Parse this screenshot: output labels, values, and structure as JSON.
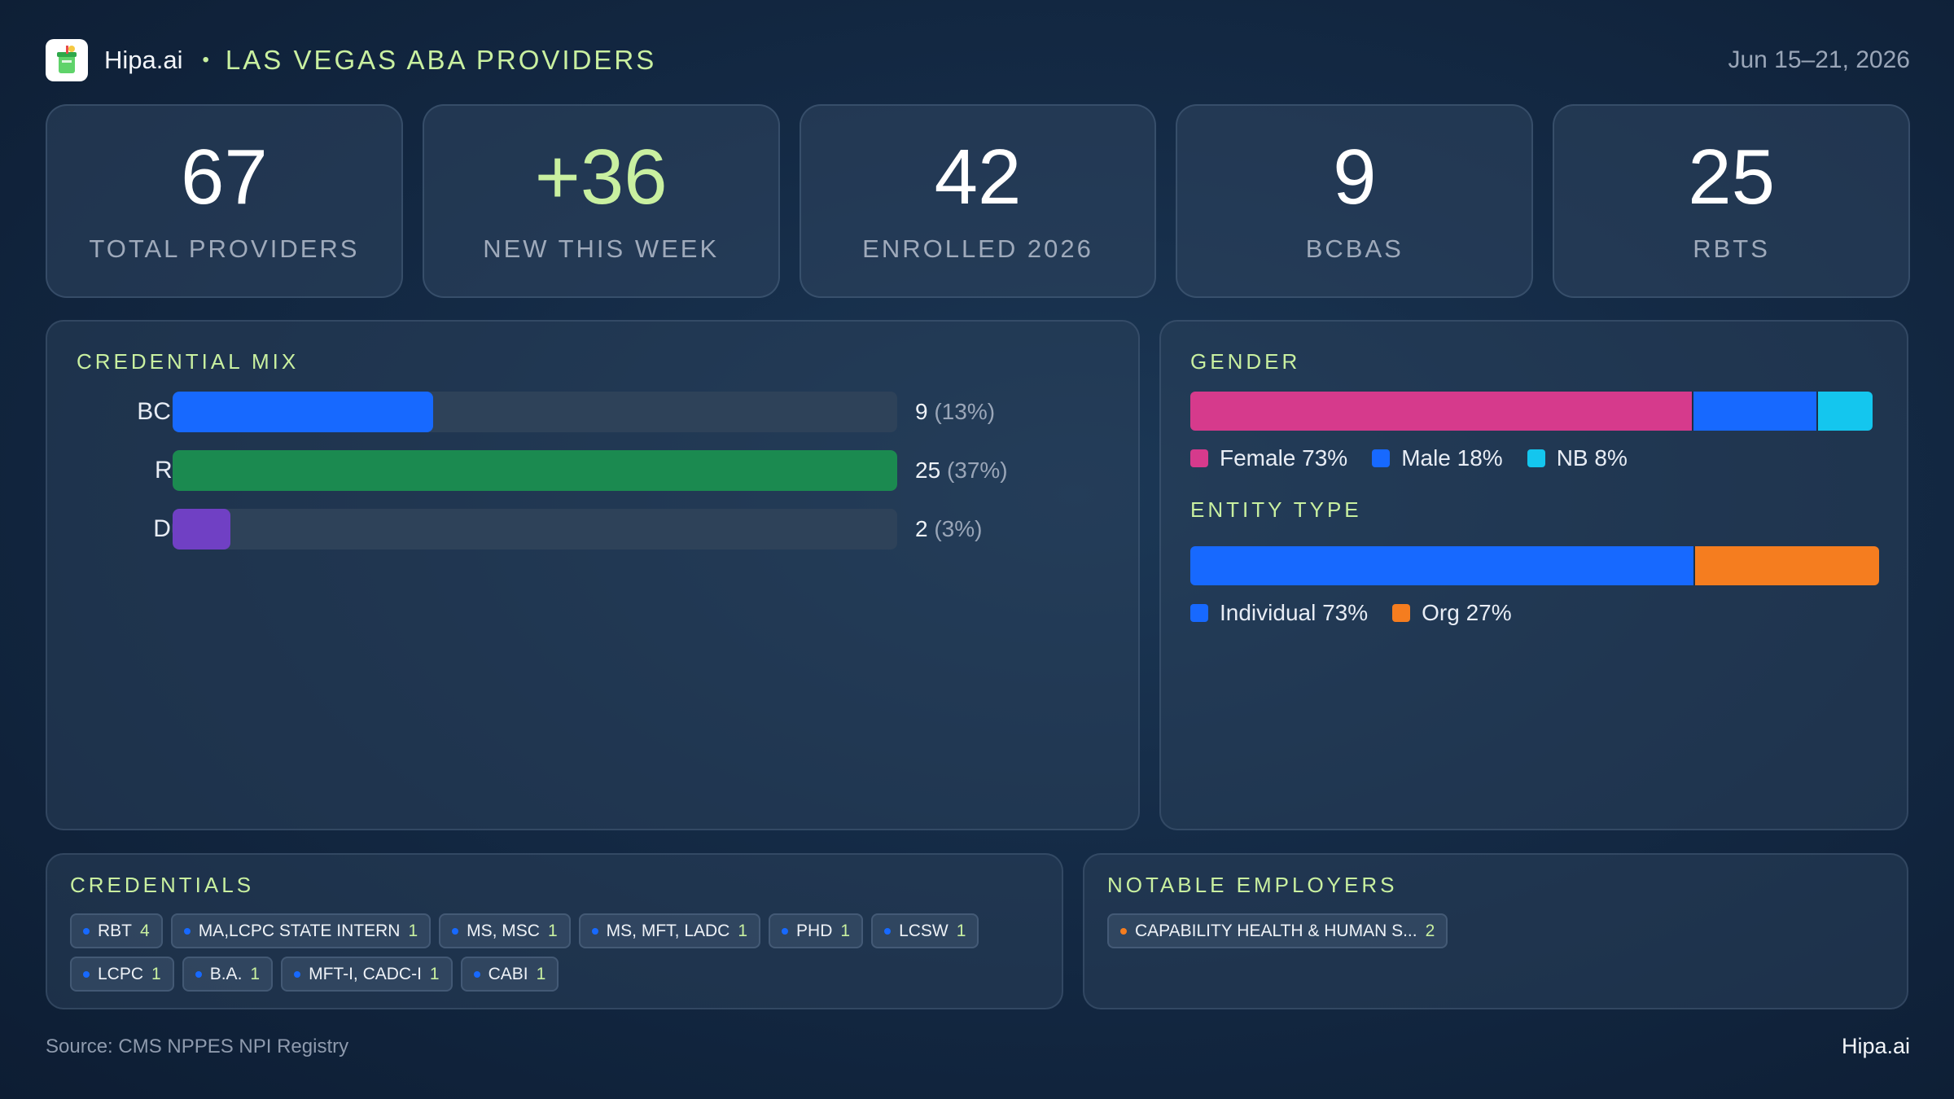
{
  "header": {
    "brand": "Hipa.ai",
    "separator": "•",
    "subtitle": "LAS VEGAS ABA PROVIDERS",
    "date_range": "Jun 15–21, 2026",
    "logo_icon": "drink-cup-icon"
  },
  "stats": [
    {
      "value": "67",
      "label": "TOTAL PROVIDERS"
    },
    {
      "value": "+36",
      "label": "NEW THIS WEEK"
    },
    {
      "value": "42",
      "label": "ENROLLED 2026"
    },
    {
      "value": "9",
      "label": "BCBAS"
    },
    {
      "value": "25",
      "label": "RBTS"
    }
  ],
  "credential_mix": {
    "title": "CREDENTIAL MIX",
    "rows": [
      {
        "label": "BCBA",
        "count": "9",
        "pct": "(13%)",
        "fraction": 0.36,
        "color": "#1769ff"
      },
      {
        "label": "RBT",
        "count": "25",
        "pct": "(37%)",
        "fraction": 1.0,
        "color": "#1b8a50"
      },
      {
        "label": "Dual",
        "count": "2",
        "pct": "(3%)",
        "fraction": 0.08,
        "color": "#7040c4"
      }
    ]
  },
  "gender": {
    "title": "GENDER",
    "segments": [
      {
        "label": "Female 73%",
        "fraction": 0.735,
        "color": "#d63a8c"
      },
      {
        "label": "Male 18%",
        "fraction": 0.183,
        "color": "#1769ff"
      },
      {
        "label": "NB 8%",
        "fraction": 0.082,
        "color": "#14c6ee"
      }
    ]
  },
  "entity_type": {
    "title": "ENTITY TYPE",
    "segments": [
      {
        "label": "Individual 73%",
        "fraction": 0.73,
        "color": "#1769ff"
      },
      {
        "label": "Org 27%",
        "fraction": 0.27,
        "color": "#f57d1f"
      }
    ]
  },
  "credentials": {
    "title": "CREDENTIALS",
    "dot_color": "#1769ff",
    "chips": [
      {
        "label": "RBT",
        "count": "4"
      },
      {
        "label": "MA,LCPC STATE INTERN",
        "count": "1"
      },
      {
        "label": "MS, MSC",
        "count": "1"
      },
      {
        "label": "MS, MFT, LADC",
        "count": "1"
      },
      {
        "label": "PHD",
        "count": "1"
      },
      {
        "label": "LCSW",
        "count": "1"
      },
      {
        "label": "LCPC",
        "count": "1"
      },
      {
        "label": "B.A.",
        "count": "1"
      },
      {
        "label": "MFT-I, CADC-I",
        "count": "1"
      },
      {
        "label": "CABI",
        "count": "1"
      }
    ]
  },
  "employers": {
    "title": "NOTABLE EMPLOYERS",
    "dot_color": "#f57d1f",
    "chips": [
      {
        "label": "CAPABILITY HEALTH & HUMAN S...",
        "count": "2"
      }
    ]
  },
  "footer": {
    "source": "Source: CMS NPPES NPI Registry",
    "brand": "Hipa.ai"
  }
}
